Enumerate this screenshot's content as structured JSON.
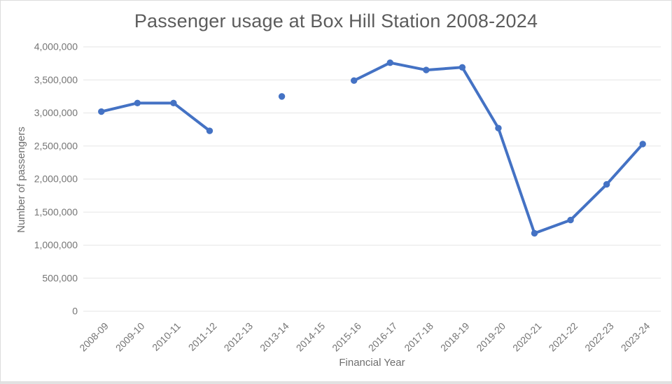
{
  "chart_data": {
    "type": "line",
    "title": "Passenger usage at Box Hill Station 2008-2024",
    "xlabel": "Financial Year",
    "ylabel": "Number of passengers",
    "categories": [
      "2008-09",
      "2009-10",
      "2010-11",
      "2011-12",
      "2012-13",
      "2013-14",
      "2014-15",
      "2015-16",
      "2016-17",
      "2017-18",
      "2018-19",
      "2019-20",
      "2020-21",
      "2021-22",
      "2022-23",
      "2023-24"
    ],
    "series": [
      {
        "values": [
          3020000,
          3150000,
          3150000,
          2730000,
          null,
          3250000,
          null,
          3490000,
          3760000,
          3650000,
          3690000,
          2770000,
          1180000,
          1380000,
          1920000,
          2530000
        ]
      }
    ],
    "ylim": [
      0,
      4000000
    ],
    "ytick_step": 500000,
    "grid": true,
    "legend": "none",
    "line_color": "#4472C4",
    "grid_color": "#e6e6e6",
    "marker": "circle"
  }
}
